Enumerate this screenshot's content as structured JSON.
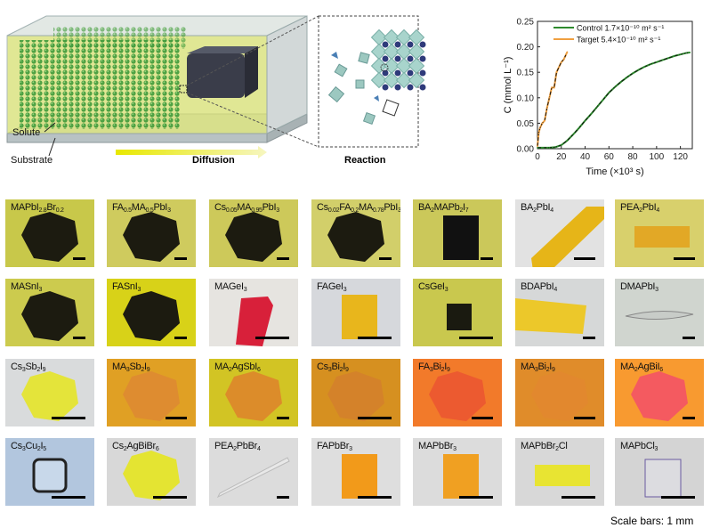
{
  "schematic": {
    "solute_label": "Solute",
    "substrate_label": "Substrate",
    "diffusion_label": "Diffusion",
    "reaction_label": "Reaction"
  },
  "chart_data": {
    "type": "line",
    "xlabel": "Time (×10³ s)",
    "ylabel": "C (mmol L⁻¹)",
    "xlim": [
      0,
      130
    ],
    "ylim": [
      0,
      0.25
    ],
    "xticks": [
      "0",
      "20",
      "40",
      "60",
      "80",
      "100",
      "120"
    ],
    "yticks": [
      "0.00",
      "0.05",
      "0.10",
      "0.15",
      "0.20",
      "0.25"
    ],
    "legend_position": "top-right",
    "series": [
      {
        "name": "Control",
        "legend": "Control 1.7×10⁻¹⁰ m² s⁻¹",
        "color": "#2e8b2e",
        "x": [
          0,
          5,
          10,
          15,
          20,
          25,
          30,
          35,
          40,
          45,
          50,
          55,
          60,
          65,
          70,
          75,
          80,
          85,
          90,
          95,
          100,
          105,
          110,
          115,
          120,
          125,
          128
        ],
        "y": [
          0.002,
          0.002,
          0.002,
          0.003,
          0.007,
          0.016,
          0.028,
          0.041,
          0.055,
          0.068,
          0.082,
          0.096,
          0.11,
          0.121,
          0.131,
          0.14,
          0.148,
          0.155,
          0.161,
          0.166,
          0.17,
          0.174,
          0.178,
          0.182,
          0.185,
          0.188,
          0.189
        ]
      },
      {
        "name": "Target",
        "legend": "Target   5.4×10⁻¹⁰ m² s⁻¹",
        "color": "#f0a040",
        "x": [
          0,
          1,
          2,
          4,
          6,
          8,
          10,
          12,
          14,
          16,
          18,
          20,
          22,
          24,
          25
        ],
        "y": [
          0.005,
          0.03,
          0.04,
          0.05,
          0.055,
          0.08,
          0.1,
          0.12,
          0.12,
          0.15,
          0.16,
          0.17,
          0.175,
          0.185,
          0.19
        ]
      }
    ]
  },
  "crystals": [
    {
      "label": "MAPbI2.8Br0.2",
      "bg": "#c8c84a",
      "fill": "#1c1b10",
      "shape": "hex",
      "bar": "short"
    },
    {
      "label": "FA0.5MA0.5PbI3",
      "bg": "#cfcb5e",
      "fill": "#1c1b10",
      "shape": "hex",
      "bar": "short"
    },
    {
      "label": "Cs0.05MA0.95PbI3",
      "bg": "#cdc95a",
      "fill": "#1c1b10",
      "shape": "hex",
      "bar": "short"
    },
    {
      "label": "Cs0.02FA0.2MA0.78PbI3",
      "bg": "#d2cf6a",
      "fill": "#1c1b10",
      "shape": "hex",
      "bar": "short"
    },
    {
      "label": "BA2MAPb2I7",
      "bg": "#cbc85a",
      "fill": "#111",
      "shape": "square",
      "bar": "short"
    },
    {
      "label": "BA2PbI4",
      "bg": "#e2e2e2",
      "fill": "#e6b518",
      "shape": "strip",
      "bar": "mid"
    },
    {
      "label": "PEA2PbI4",
      "bg": "#d8d06c",
      "fill": "#e2a826",
      "shape": "rect",
      "bar": "mid"
    },
    {
      "label": "MASnI3",
      "bg": "#cccb4e",
      "fill": "#1c1b10",
      "shape": "hex",
      "bar": "short"
    },
    {
      "label": "FASnI3",
      "bg": "#d8d218",
      "fill": "#1c1b10",
      "shape": "hex",
      "bar": "short"
    },
    {
      "label": "MAGeI3",
      "bg": "#e6e4e0",
      "fill": "#d8203a",
      "shape": "quad",
      "bar": "long"
    },
    {
      "label": "FAGeI3",
      "bg": "#d6d8dc",
      "fill": "#e8b61c",
      "shape": "square",
      "bar": "long"
    },
    {
      "label": "CsGeI3",
      "bg": "#c9c84e",
      "fill": "#1a1a10",
      "shape": "smallsquare",
      "bar": "long"
    },
    {
      "label": "BDAPbI4",
      "bg": "#d6d8d8",
      "fill": "#ecc82a",
      "shape": "strip2",
      "bar": "short"
    },
    {
      "label": "DMAPbI3",
      "bg": "#d0d5cf",
      "fill": "#c8ccc8",
      "shape": "needle",
      "bar": "short"
    },
    {
      "label": "Cs3Sb2I9",
      "bg": "#d9dbdc",
      "fill": "#e4e43a",
      "shape": "hex",
      "bar": "long"
    },
    {
      "label": "MA3Sb2I9",
      "bg": "#e0a024",
      "fill": "#de8c30",
      "shape": "hex",
      "bar": "mid"
    },
    {
      "label": "MA2AgSbI6",
      "bg": "#d2c424",
      "fill": "#dc8c2a",
      "shape": "hex",
      "bar": "short"
    },
    {
      "label": "Cs3Bi2I9",
      "bg": "#d69020",
      "fill": "#d4822a",
      "shape": "hex",
      "bar": "long"
    },
    {
      "label": "FA3Bi2I9",
      "bg": "#f27a2a",
      "fill": "#ec5a30",
      "shape": "hex",
      "bar": "mid"
    },
    {
      "label": "MA3Bi2I9",
      "bg": "#e08c2a",
      "fill": "#e2882e",
      "shape": "hex",
      "bar": "mid"
    },
    {
      "label": "MA2AgBiI6",
      "bg": "#f89a30",
      "fill": "#f45a60",
      "shape": "hex",
      "bar": "short"
    },
    {
      "label": "Cs3Cu2I5",
      "bg": "#b2c6de",
      "fill": "#c8d8ea",
      "shape": "rounded",
      "bar": "long"
    },
    {
      "label": "Cs2AgBiBr6",
      "bg": "#d8d8d8",
      "fill": "#e4e432",
      "shape": "hex",
      "bar": "long"
    },
    {
      "label": "PEA2PbBr4",
      "bg": "#dcdcdc",
      "fill": "#e8e8e8",
      "shape": "needle2",
      "bar": "short"
    },
    {
      "label": "FAPbBr3",
      "bg": "#dedede",
      "fill": "#f29a1a",
      "shape": "square",
      "bar": "long"
    },
    {
      "label": "MAPbBr3",
      "bg": "#dcdcdc",
      "fill": "#f0a022",
      "shape": "square",
      "bar": "long"
    },
    {
      "label": "MAPbBr2Cl",
      "bg": "#d8d8d8",
      "fill": "#e8e432",
      "shape": "rect",
      "bar": "long"
    },
    {
      "label": "MAPbCl3",
      "bg": "#d4d4d4",
      "fill": "#dcdce0",
      "shape": "outline",
      "bar": "long"
    }
  ],
  "scale_note": "Scale bars: 1 mm"
}
